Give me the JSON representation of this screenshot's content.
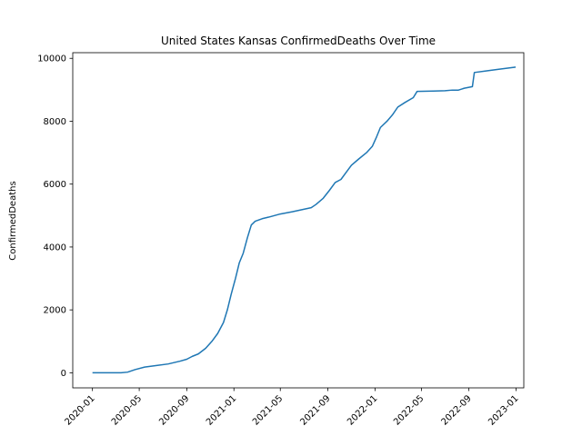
{
  "chart_data": {
    "type": "line",
    "title": "United States Kansas ConfirmedDeaths Over Time",
    "xlabel": "",
    "ylabel": "ConfirmedDeaths",
    "grid": false,
    "legend": "none",
    "xlim": [
      "2019-11-11",
      "2023-01-21"
    ],
    "ylim": [
      -480,
      10180
    ],
    "x_ticks": [
      "2020-01-01",
      "2020-05-01",
      "2020-09-01",
      "2021-01-01",
      "2021-05-01",
      "2021-09-01",
      "2022-01-01",
      "2022-05-01",
      "2022-09-01",
      "2023-01-01"
    ],
    "x_tick_labels": [
      "2020-01",
      "2020-05",
      "2020-09",
      "2021-01",
      "2021-05",
      "2021-09",
      "2022-01",
      "2022-05",
      "2022-09",
      "2023-01"
    ],
    "y_ticks": [
      0,
      2000,
      4000,
      6000,
      8000,
      10000
    ],
    "y_tick_labels": [
      "0",
      "2000",
      "4000",
      "6000",
      "8000",
      "10000"
    ],
    "series": [
      {
        "color": "#1f77b4",
        "points": [
          [
            "2020-01-01",
            0
          ],
          [
            "2020-03-15",
            2
          ],
          [
            "2020-04-01",
            20
          ],
          [
            "2020-04-20",
            100
          ],
          [
            "2020-05-15",
            180
          ],
          [
            "2020-06-15",
            230
          ],
          [
            "2020-07-15",
            280
          ],
          [
            "2020-08-15",
            370
          ],
          [
            "2020-09-01",
            430
          ],
          [
            "2020-09-15",
            520
          ],
          [
            "2020-10-01",
            600
          ],
          [
            "2020-10-20",
            780
          ],
          [
            "2020-11-05",
            1000
          ],
          [
            "2020-11-20",
            1250
          ],
          [
            "2020-12-05",
            1600
          ],
          [
            "2020-12-15",
            2000
          ],
          [
            "2020-12-25",
            2500
          ],
          [
            "2021-01-05",
            3000
          ],
          [
            "2021-01-15",
            3500
          ],
          [
            "2021-01-25",
            3800
          ],
          [
            "2021-02-05",
            4300
          ],
          [
            "2021-02-15",
            4700
          ],
          [
            "2021-02-25",
            4820
          ],
          [
            "2021-03-15",
            4900
          ],
          [
            "2021-04-01",
            4950
          ],
          [
            "2021-05-01",
            5050
          ],
          [
            "2021-06-01",
            5120
          ],
          [
            "2021-07-01",
            5200
          ],
          [
            "2021-07-20",
            5250
          ],
          [
            "2021-08-01",
            5350
          ],
          [
            "2021-08-20",
            5550
          ],
          [
            "2021-09-05",
            5800
          ],
          [
            "2021-09-20",
            6050
          ],
          [
            "2021-10-05",
            6150
          ],
          [
            "2021-10-20",
            6400
          ],
          [
            "2021-11-01",
            6600
          ],
          [
            "2021-11-20",
            6800
          ],
          [
            "2021-12-10",
            7000
          ],
          [
            "2021-12-25",
            7200
          ],
          [
            "2022-01-05",
            7500
          ],
          [
            "2022-01-15",
            7800
          ],
          [
            "2022-02-01",
            8000
          ],
          [
            "2022-02-15",
            8200
          ],
          [
            "2022-03-01",
            8450
          ],
          [
            "2022-03-20",
            8600
          ],
          [
            "2022-04-10",
            8750
          ],
          [
            "2022-04-20",
            8950
          ],
          [
            "2022-06-01",
            8960
          ],
          [
            "2022-07-01",
            8970
          ],
          [
            "2022-07-20",
            8990
          ],
          [
            "2022-08-05",
            8990
          ],
          [
            "2022-08-20",
            9050
          ],
          [
            "2022-09-10",
            9100
          ],
          [
            "2022-09-15",
            9550
          ],
          [
            "2022-10-15",
            9600
          ],
          [
            "2022-11-15",
            9650
          ],
          [
            "2022-12-31",
            9720
          ]
        ]
      }
    ]
  }
}
